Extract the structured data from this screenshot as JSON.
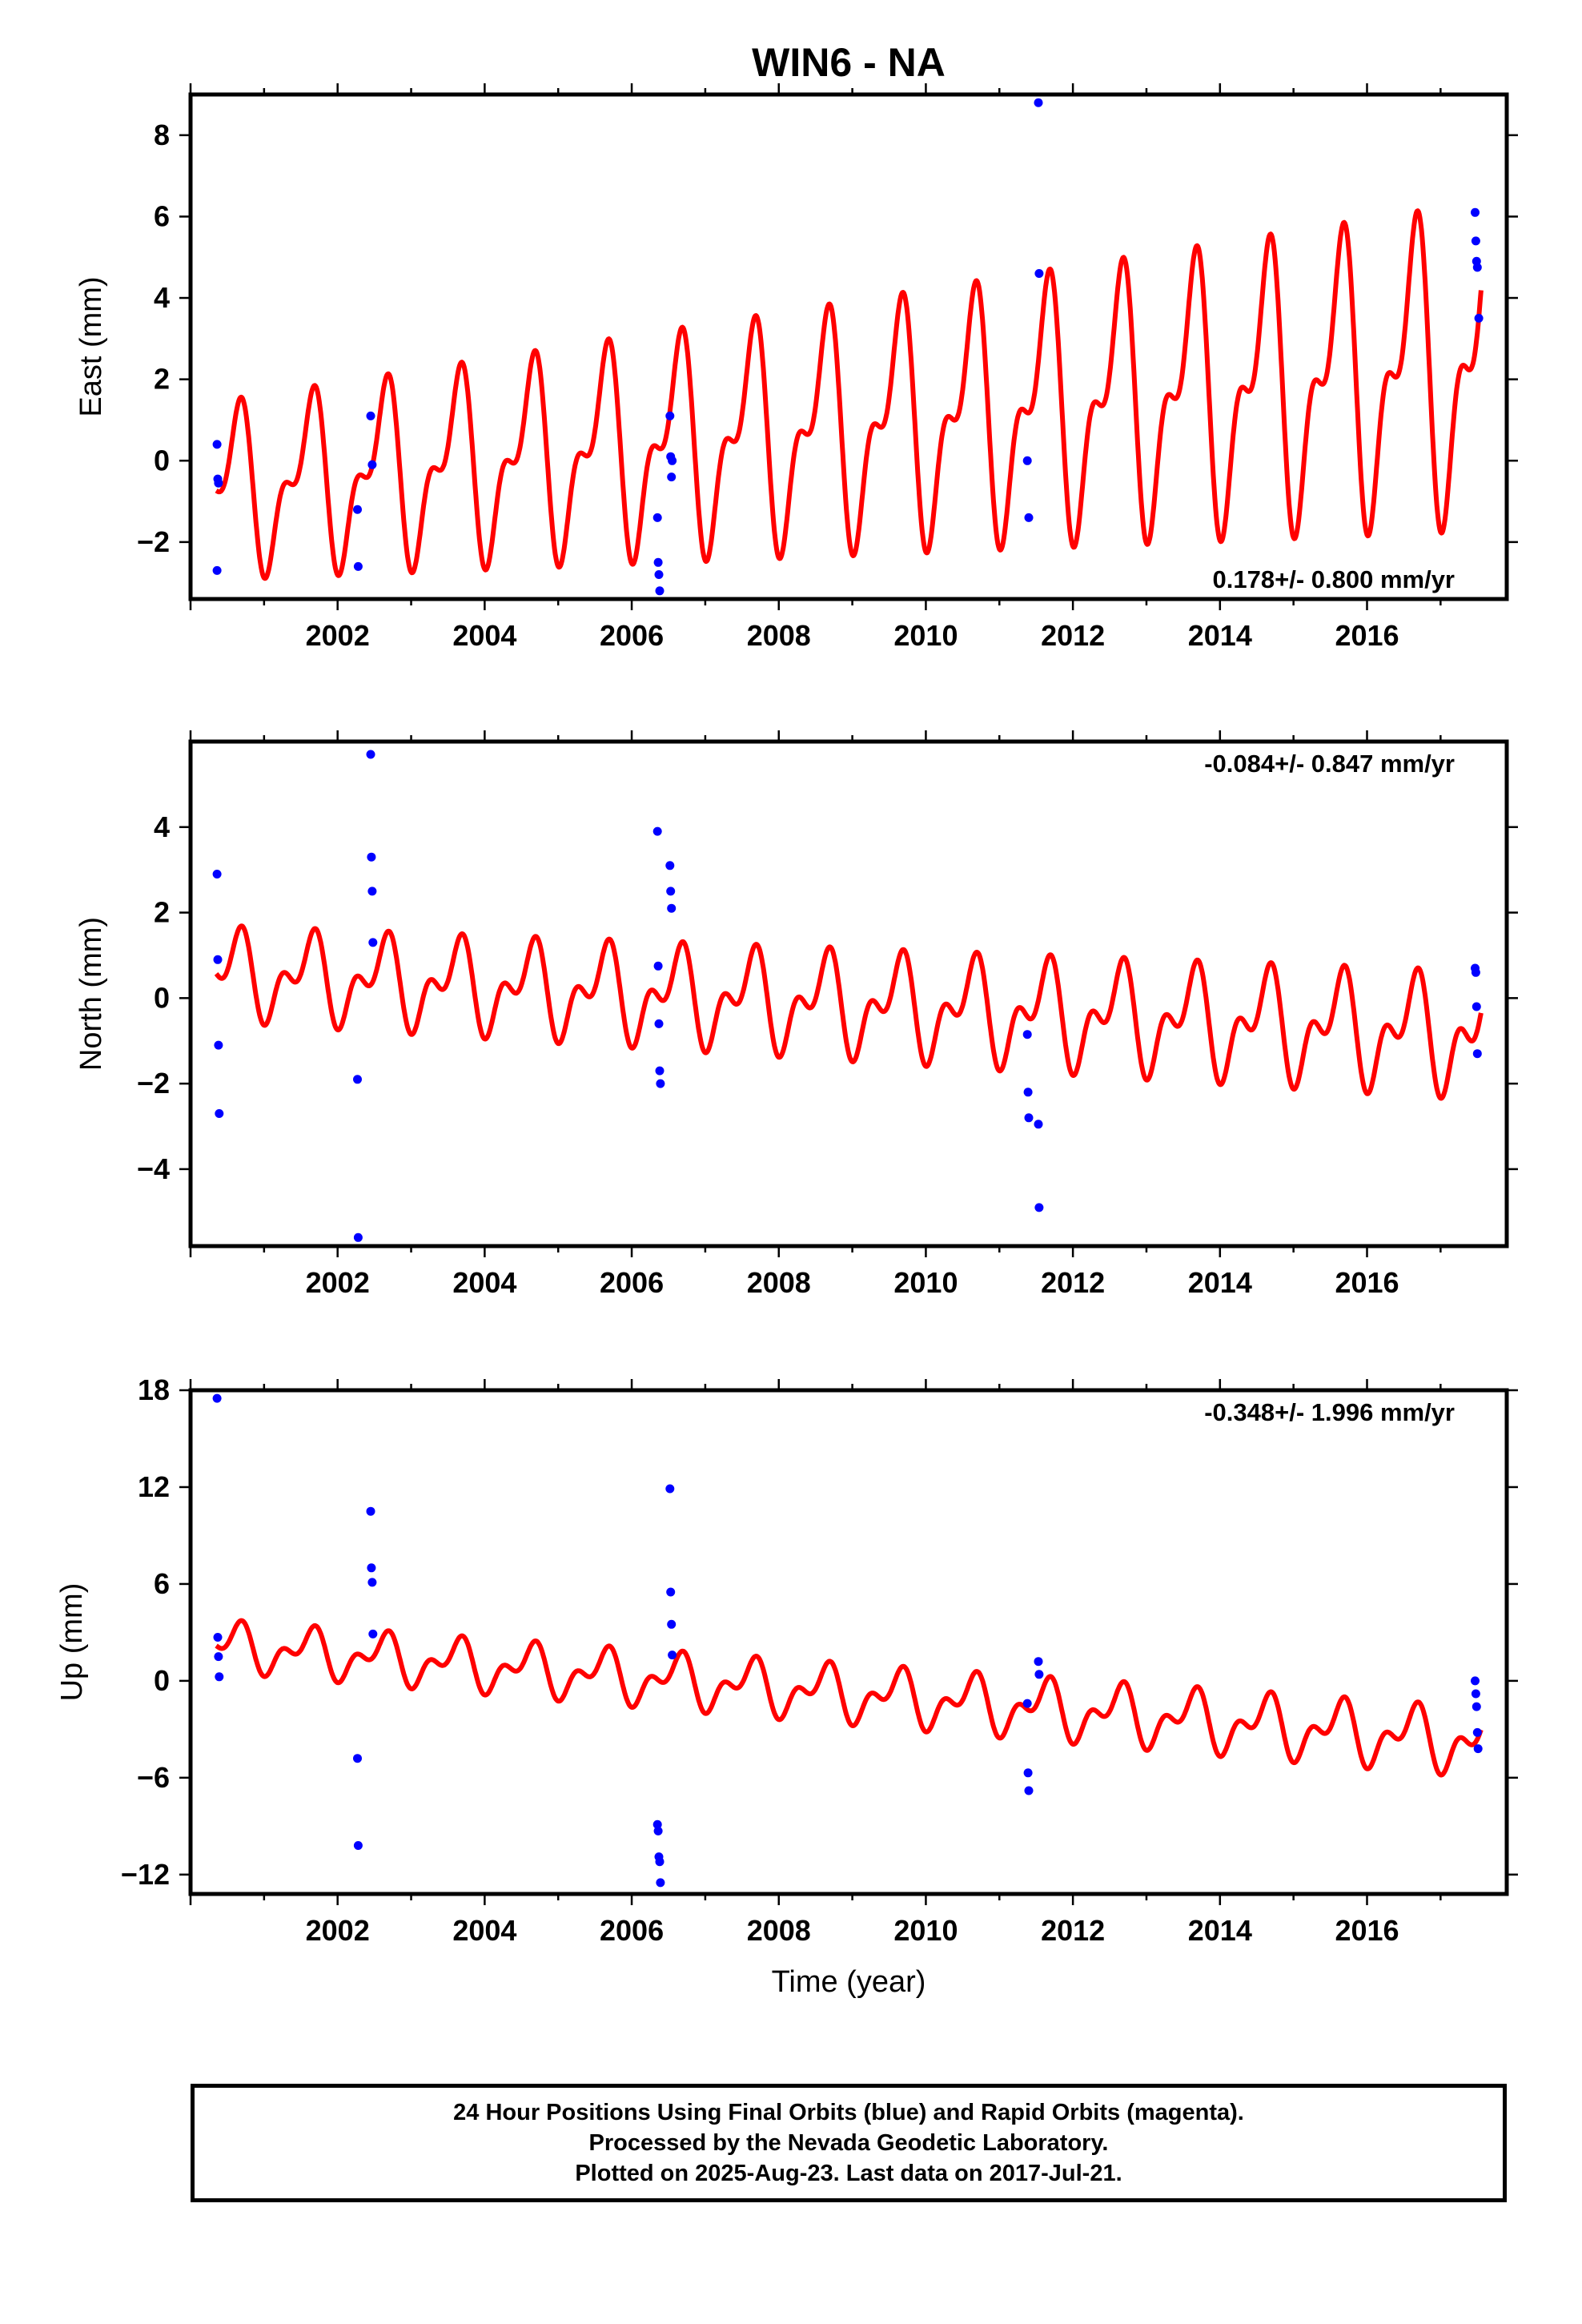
{
  "title": "WIN6 - NA",
  "colors": {
    "model": "#ff0000",
    "final_orbits": "#0000ff",
    "frame": "#000000"
  },
  "chart_data": [
    {
      "type": "scatter",
      "name": "east",
      "ylabel": "East (mm)",
      "xlabel": "",
      "xlim": [
        2000.0,
        2017.9
      ],
      "ylim": [
        -3.4,
        9.0
      ],
      "xticks": [
        "2002",
        "2004",
        "2006",
        "2008",
        "2010",
        "2012",
        "2014",
        "2016"
      ],
      "yticks": [
        "−2",
        "0",
        "2",
        "4",
        "6",
        "8"
      ],
      "ytick_values": [
        -2,
        0,
        2,
        4,
        6,
        8
      ],
      "annotation": "0.178+/- 0.800 mm/yr",
      "annotation_position": "bottom-right",
      "model": {
        "offset": -0.8,
        "trend": 0.178,
        "annual_amp": 1.6,
        "semiannual_amp": 0.9,
        "amp_growth": 0.05
      },
      "points": [
        [
          2000.36,
          0.4
        ],
        [
          2000.37,
          -0.45
        ],
        [
          2000.38,
          -0.55
        ],
        [
          2000.36,
          -2.7
        ],
        [
          2002.27,
          -1.2
        ],
        [
          2002.28,
          -2.6
        ],
        [
          2002.45,
          1.1
        ],
        [
          2002.47,
          -0.1
        ],
        [
          2006.35,
          -1.4
        ],
        [
          2006.36,
          -2.5
        ],
        [
          2006.37,
          -2.8
        ],
        [
          2006.38,
          -3.2
        ],
        [
          2006.52,
          1.1
        ],
        [
          2006.53,
          0.1
        ],
        [
          2006.54,
          -0.4
        ],
        [
          2006.55,
          0.0
        ],
        [
          2011.38,
          0.0
        ],
        [
          2011.4,
          -1.4
        ],
        [
          2011.53,
          8.8
        ],
        [
          2011.54,
          4.6
        ],
        [
          2017.47,
          6.1
        ],
        [
          2017.48,
          5.4
        ],
        [
          2017.49,
          4.9
        ],
        [
          2017.5,
          4.75
        ],
        [
          2017.52,
          3.5
        ]
      ]
    },
    {
      "type": "scatter",
      "name": "north",
      "ylabel": "North (mm)",
      "xlabel": "",
      "xlim": [
        2000.0,
        2017.9
      ],
      "ylim": [
        -5.8,
        6.0
      ],
      "xticks": [
        "2002",
        "2004",
        "2006",
        "2008",
        "2010",
        "2012",
        "2014",
        "2016"
      ],
      "yticks": [
        "−4",
        "−2",
        "0",
        "2",
        "4"
      ],
      "ytick_values": [
        -4,
        -2,
        0,
        2,
        4
      ],
      "annotation": "-0.084+/- 0.847 mm/yr",
      "annotation_position": "top-right",
      "model": {
        "offset": 0.6,
        "trend": -0.084,
        "annual_amp": 0.75,
        "semiannual_amp": 0.55,
        "amp_growth": 0.02
      },
      "points": [
        [
          2000.36,
          2.9
        ],
        [
          2000.37,
          0.9
        ],
        [
          2000.38,
          -1.1
        ],
        [
          2000.39,
          -2.7
        ],
        [
          2002.27,
          -1.9
        ],
        [
          2002.28,
          -5.6
        ],
        [
          2002.45,
          5.7
        ],
        [
          2002.46,
          3.3
        ],
        [
          2002.47,
          2.5
        ],
        [
          2002.48,
          1.3
        ],
        [
          2006.35,
          3.9
        ],
        [
          2006.36,
          0.75
        ],
        [
          2006.37,
          -0.6
        ],
        [
          2006.38,
          -1.7
        ],
        [
          2006.39,
          -2.0
        ],
        [
          2006.52,
          3.1
        ],
        [
          2006.53,
          2.5
        ],
        [
          2006.54,
          2.1
        ],
        [
          2011.38,
          -0.85
        ],
        [
          2011.39,
          -2.2
        ],
        [
          2011.4,
          -2.8
        ],
        [
          2011.53,
          -2.95
        ],
        [
          2011.54,
          -4.9
        ],
        [
          2017.47,
          0.7
        ],
        [
          2017.48,
          0.6
        ],
        [
          2017.49,
          -0.2
        ],
        [
          2017.5,
          -1.3
        ]
      ]
    },
    {
      "type": "scatter",
      "name": "up",
      "ylabel": "Up (mm)",
      "xlabel": "Time (year)",
      "xlim": [
        2000.0,
        2017.9
      ],
      "ylim": [
        -13.2,
        18.0
      ],
      "xticks": [
        "2002",
        "2004",
        "2006",
        "2008",
        "2010",
        "2012",
        "2014",
        "2016"
      ],
      "yticks": [
        "−12",
        "−6",
        "0",
        "6",
        "12",
        "18"
      ],
      "ytick_values": [
        -12,
        -6,
        0,
        6,
        12,
        18
      ],
      "annotation": "-0.348+/- 1.996 mm/yr",
      "annotation_position": "top-right",
      "model": {
        "offset": 2.3,
        "trend": -0.348,
        "annual_amp": 1.1,
        "semiannual_amp": 0.8,
        "amp_growth": 0.02
      },
      "points": [
        [
          2000.36,
          17.5
        ],
        [
          2000.37,
          2.7
        ],
        [
          2000.38,
          1.5
        ],
        [
          2000.39,
          0.25
        ],
        [
          2002.27,
          -4.8
        ],
        [
          2002.28,
          -10.2
        ],
        [
          2002.45,
          10.5
        ],
        [
          2002.46,
          7.0
        ],
        [
          2002.47,
          6.1
        ],
        [
          2002.48,
          2.9
        ],
        [
          2006.35,
          -8.9
        ],
        [
          2006.36,
          -9.3
        ],
        [
          2006.37,
          -10.9
        ],
        [
          2006.38,
          -11.2
        ],
        [
          2006.39,
          -12.5
        ],
        [
          2006.52,
          11.9
        ],
        [
          2006.53,
          5.5
        ],
        [
          2006.54,
          3.5
        ],
        [
          2006.55,
          1.6
        ],
        [
          2011.38,
          -1.4
        ],
        [
          2011.39,
          -5.7
        ],
        [
          2011.4,
          -6.8
        ],
        [
          2011.53,
          1.2
        ],
        [
          2011.54,
          0.4
        ],
        [
          2017.47,
          0.0
        ],
        [
          2017.48,
          -0.8
        ],
        [
          2017.49,
          -1.6
        ],
        [
          2017.5,
          -3.2
        ],
        [
          2017.51,
          -4.2
        ]
      ]
    }
  ],
  "footer": {
    "line1": "24 Hour Positions Using Final Orbits (blue) and Rapid Orbits (magenta).",
    "line2": "Processed by the Nevada Geodetic Laboratory.",
    "line3": "Plotted on 2025-Aug-23. Last data on 2017-Jul-21."
  }
}
